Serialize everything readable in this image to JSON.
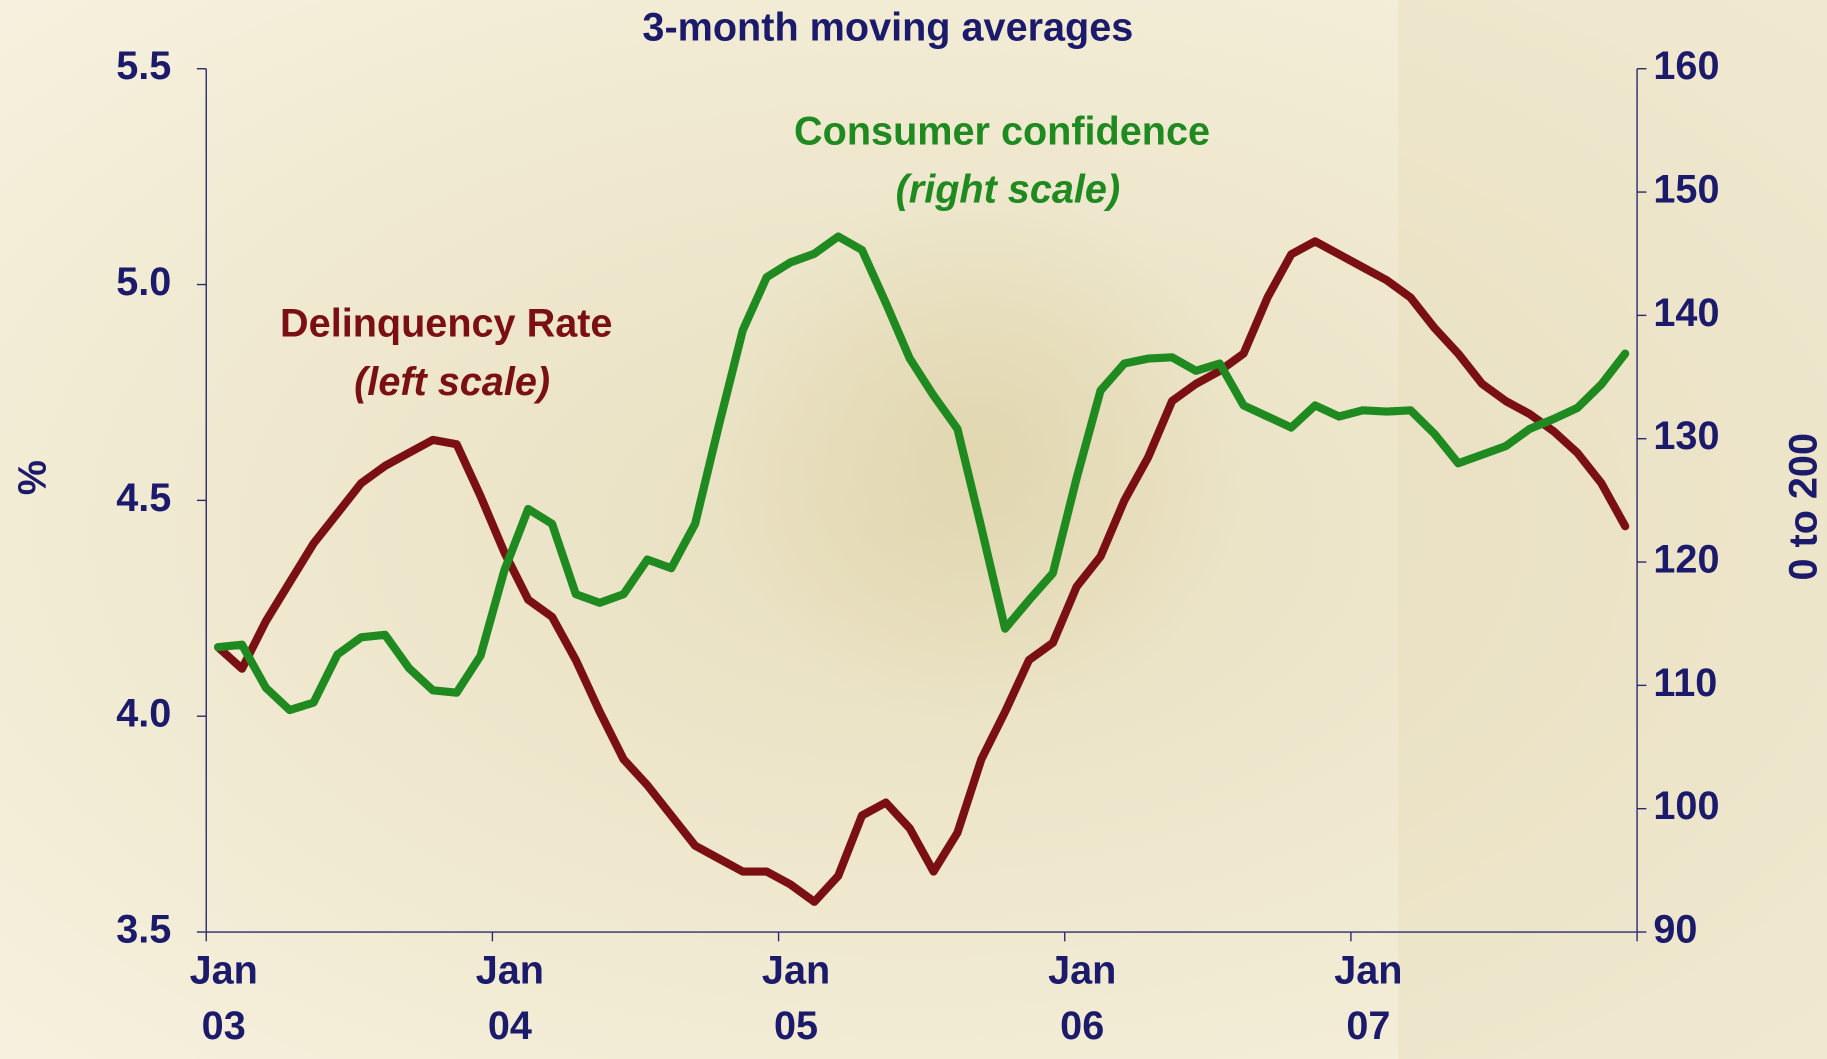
{
  "chart_data": {
    "type": "line",
    "title": "3-month moving averages",
    "y_label": "%",
    "y2_label": "0 to 200",
    "categories": [
      "Jan 03",
      null,
      null,
      null,
      null,
      null,
      null,
      null,
      null,
      null,
      null,
      null,
      "Jan 04",
      null,
      null,
      null,
      null,
      null,
      null,
      null,
      null,
      null,
      null,
      null,
      "Jan 05",
      null,
      null,
      null,
      null,
      null,
      null,
      null,
      null,
      null,
      null,
      null,
      "Jan 06",
      null,
      null,
      null,
      null,
      null,
      null,
      null,
      null,
      null,
      null,
      null,
      "Jan 07",
      null,
      null,
      null,
      null,
      null,
      null,
      null,
      null,
      null,
      null,
      null
    ],
    "ylim": [
      3.5,
      5.5
    ],
    "yticks": [
      3.5,
      {
        "value": 4,
        "label": "4.0"
      },
      4.5,
      {
        "value": 5,
        "label": "5.0"
      },
      5.5
    ],
    "y2lim": [
      90,
      160
    ],
    "y2ticks": [
      90,
      100,
      110,
      120,
      130,
      140,
      150,
      160
    ],
    "series": [
      {
        "name": "Delinquency Rate",
        "note": "(left scale)",
        "color": "#7a1014",
        "axis": "y",
        "values": [
          4.16,
          4.11,
          4.22,
          4.31,
          4.4,
          4.47,
          4.54,
          4.58,
          4.61,
          4.64,
          4.63,
          4.51,
          4.38,
          4.27,
          4.23,
          4.13,
          4.01,
          3.9,
          3.84,
          3.77,
          3.7,
          3.67,
          3.64,
          3.64,
          3.61,
          3.57,
          3.63,
          3.77,
          3.8,
          3.74,
          3.64,
          3.73,
          3.9,
          4.01,
          4.13,
          4.17,
          4.3,
          4.37,
          4.5,
          4.6,
          4.73,
          4.77,
          4.8,
          4.84,
          4.97,
          5.07,
          5.1,
          5.07,
          5.04,
          5.01,
          4.97,
          4.9,
          4.84,
          4.77,
          4.73,
          4.7,
          4.66,
          4.61,
          4.54,
          4.44
        ]
      },
      {
        "name": "Consumer confidence",
        "note": "(right scale)",
        "color": "#1f8a1f",
        "axis": "y2",
        "values": [
          113.1,
          113.3,
          109.8,
          108.0,
          108.6,
          112.5,
          113.9,
          114.1,
          111.4,
          109.6,
          109.4,
          112.4,
          119.3,
          124.3,
          123.1,
          117.4,
          116.7,
          117.4,
          120.2,
          119.5,
          123.1,
          131.1,
          138.8,
          143.1,
          144.3,
          145.0,
          146.4,
          145.3,
          141.0,
          136.5,
          133.5,
          130.8,
          122.8,
          114.6,
          116.9,
          119.1,
          126.8,
          133.9,
          136.1,
          136.5,
          136.6,
          135.5,
          136.1,
          132.7,
          131.8,
          130.9,
          132.7,
          131.8,
          132.3,
          132.2,
          132.3,
          130.4,
          128.0,
          128.7,
          129.4,
          130.8,
          131.6,
          132.5,
          134.4,
          136.9
        ]
      }
    ]
  }
}
